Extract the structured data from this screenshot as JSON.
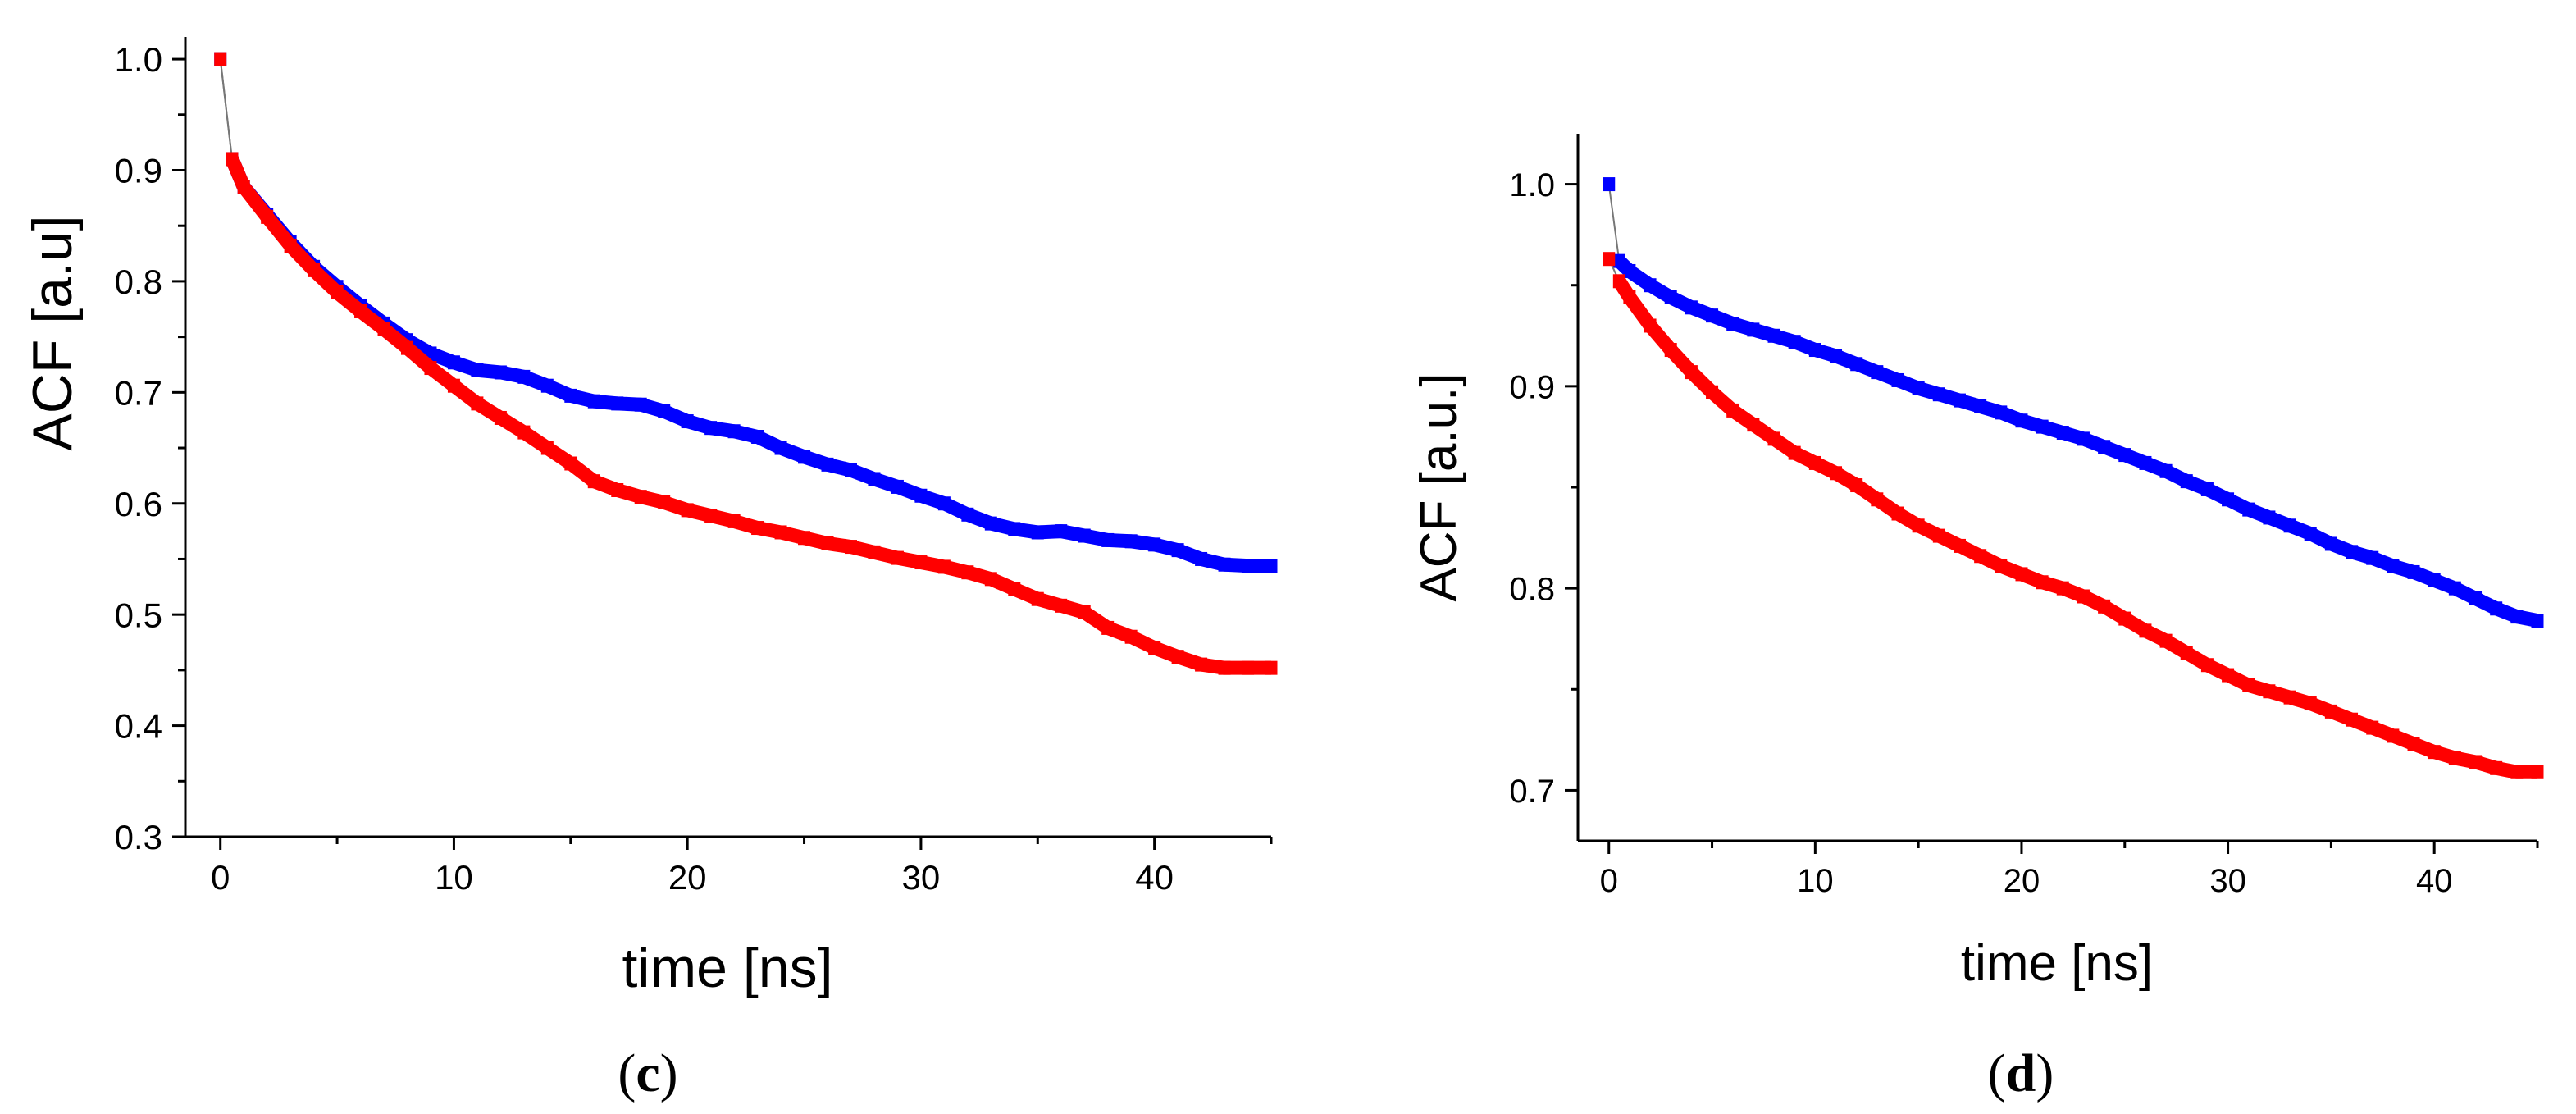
{
  "chart_data": [
    {
      "type": "scatter",
      "panel_label": {
        "open": "(",
        "letter": "c",
        "close": ")"
      },
      "xlabel": "time [ns]",
      "ylabel": "ACF [a.u]",
      "xlim": [
        -1.5,
        45
      ],
      "ylim": [
        0.3,
        1.02
      ],
      "xticks": [
        0,
        10,
        20,
        30,
        40
      ],
      "xtick_labels": [
        "0",
        "10",
        "20",
        "30",
        "40"
      ],
      "yticks": [
        0.3,
        0.4,
        0.5,
        0.6,
        0.7,
        0.8,
        0.9,
        1.0
      ],
      "ytick_labels": [
        "0.3",
        "0.4",
        "0.5",
        "0.6",
        "0.7",
        "0.8",
        "0.9",
        "1.0"
      ],
      "series": [
        {
          "name": "blue",
          "color": "#0000ff",
          "x": [
            0,
            0.5,
            1,
            2,
            3,
            4,
            5,
            6,
            7,
            8,
            9,
            10,
            11,
            12,
            13,
            14,
            15,
            16,
            17,
            18,
            19,
            20,
            21,
            22,
            23,
            24,
            25,
            26,
            27,
            28,
            29,
            30,
            31,
            32,
            33,
            34,
            35,
            36,
            37,
            38,
            39,
            40,
            41,
            42,
            43,
            44,
            45
          ],
          "y": [
            1.0,
            0.91,
            0.885,
            0.86,
            0.835,
            0.813,
            0.795,
            0.778,
            0.762,
            0.747,
            0.735,
            0.727,
            0.72,
            0.718,
            0.714,
            0.706,
            0.697,
            0.692,
            0.69,
            0.689,
            0.683,
            0.674,
            0.668,
            0.665,
            0.66,
            0.65,
            0.642,
            0.635,
            0.63,
            0.622,
            0.615,
            0.607,
            0.6,
            0.59,
            0.582,
            0.577,
            0.574,
            0.575,
            0.571,
            0.567,
            0.566,
            0.563,
            0.558,
            0.55,
            0.545,
            0.544,
            0.544
          ]
        },
        {
          "name": "red",
          "color": "#ff0000",
          "x": [
            0,
            0.5,
            1,
            2,
            3,
            4,
            5,
            6,
            7,
            8,
            9,
            10,
            11,
            12,
            13,
            14,
            15,
            16,
            17,
            18,
            19,
            20,
            21,
            22,
            23,
            24,
            25,
            26,
            27,
            28,
            29,
            30,
            31,
            32,
            33,
            34,
            35,
            36,
            37,
            38,
            39,
            40,
            41,
            42,
            43,
            44,
            45
          ],
          "y": [
            1.0,
            0.91,
            0.885,
            0.858,
            0.832,
            0.81,
            0.79,
            0.773,
            0.757,
            0.74,
            0.722,
            0.706,
            0.69,
            0.677,
            0.664,
            0.65,
            0.636,
            0.62,
            0.612,
            0.606,
            0.601,
            0.594,
            0.589,
            0.584,
            0.578,
            0.574,
            0.569,
            0.564,
            0.561,
            0.556,
            0.551,
            0.547,
            0.543,
            0.538,
            0.532,
            0.523,
            0.514,
            0.508,
            0.502,
            0.488,
            0.48,
            0.47,
            0.462,
            0.455,
            0.452,
            0.452,
            0.452
          ]
        }
      ]
    },
    {
      "type": "scatter",
      "panel_label": {
        "open": "(",
        "letter": "d",
        "close": ")"
      },
      "xlabel": "time [ns]",
      "ylabel": "ACF [a.u.]",
      "xlim": [
        -1.5,
        45
      ],
      "ylim": [
        0.675,
        1.025
      ],
      "xticks": [
        0,
        10,
        20,
        30,
        40
      ],
      "xtick_labels": [
        "0",
        "10",
        "20",
        "30",
        "40"
      ],
      "yticks": [
        0.7,
        0.8,
        0.9,
        1.0
      ],
      "ytick_labels": [
        "0.7",
        "0.8",
        "0.9",
        "1.0"
      ],
      "series": [
        {
          "name": "blue",
          "color": "#0000ff",
          "x": [
            0,
            0.5,
            1,
            2,
            3,
            4,
            5,
            6,
            7,
            8,
            9,
            10,
            11,
            12,
            13,
            14,
            15,
            16,
            17,
            18,
            19,
            20,
            21,
            22,
            23,
            24,
            25,
            26,
            27,
            28,
            29,
            30,
            31,
            32,
            33,
            34,
            35,
            36,
            37,
            38,
            39,
            40,
            41,
            42,
            43,
            44,
            45
          ],
          "y": [
            1.0,
            0.962,
            0.957,
            0.95,
            0.944,
            0.939,
            0.935,
            0.931,
            0.928,
            0.925,
            0.922,
            0.918,
            0.915,
            0.911,
            0.907,
            0.903,
            0.899,
            0.896,
            0.893,
            0.89,
            0.887,
            0.883,
            0.88,
            0.877,
            0.874,
            0.87,
            0.866,
            0.862,
            0.858,
            0.853,
            0.849,
            0.844,
            0.839,
            0.835,
            0.831,
            0.827,
            0.822,
            0.818,
            0.815,
            0.811,
            0.808,
            0.804,
            0.8,
            0.795,
            0.79,
            0.786,
            0.784
          ]
        },
        {
          "name": "red",
          "color": "#ff0000",
          "x": [
            0,
            0.5,
            1,
            2,
            3,
            4,
            5,
            6,
            7,
            8,
            9,
            10,
            11,
            12,
            13,
            14,
            15,
            16,
            17,
            18,
            19,
            20,
            21,
            22,
            23,
            24,
            25,
            26,
            27,
            28,
            29,
            30,
            31,
            32,
            33,
            34,
            35,
            36,
            37,
            38,
            39,
            40,
            41,
            42,
            43,
            44,
            45
          ],
          "y": [
            0.963,
            0.952,
            0.944,
            0.93,
            0.918,
            0.907,
            0.897,
            0.888,
            0.881,
            0.874,
            0.867,
            0.862,
            0.857,
            0.851,
            0.844,
            0.837,
            0.831,
            0.826,
            0.821,
            0.816,
            0.811,
            0.807,
            0.803,
            0.8,
            0.796,
            0.791,
            0.785,
            0.779,
            0.774,
            0.768,
            0.762,
            0.757,
            0.752,
            0.749,
            0.746,
            0.743,
            0.739,
            0.735,
            0.731,
            0.727,
            0.723,
            0.719,
            0.716,
            0.714,
            0.711,
            0.709,
            0.709
          ]
        }
      ]
    }
  ]
}
